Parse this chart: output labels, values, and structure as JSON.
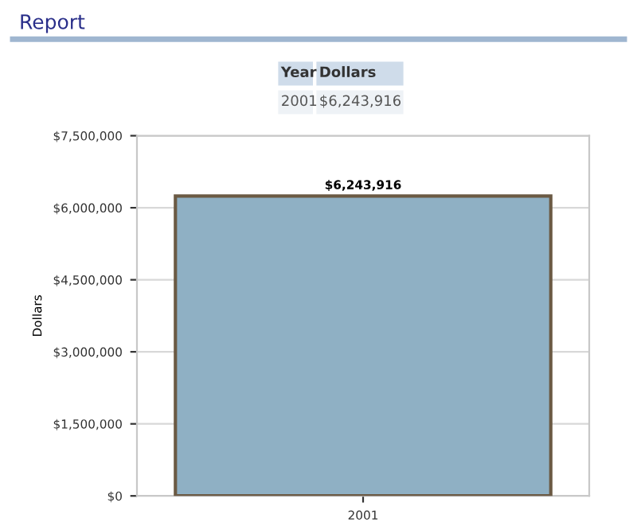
{
  "chart_data": {
    "type": "bar",
    "title": "Report",
    "ylabel": "Dollars",
    "categories": [
      "2001"
    ],
    "values": [
      6243916
    ],
    "color": "#8fb0c4",
    "value_labels": [
      "$6,243,916"
    ],
    "ylim": [
      0,
      7500000
    ],
    "yticks": [
      {
        "value": 0,
        "label": "$0"
      },
      {
        "value": 1500000,
        "label": "$1,500,000"
      },
      {
        "value": 3000000,
        "label": "$3,000,000"
      },
      {
        "value": 4500000,
        "label": "$4,500,000"
      },
      {
        "value": 6000000,
        "label": "$6,000,000"
      },
      {
        "value": 7500000,
        "label": "$7,500,000"
      }
    ],
    "grid": "y",
    "annotations": [
      "Year",
      "Dollars",
      "2001",
      "$6,243,916"
    ]
  }
}
